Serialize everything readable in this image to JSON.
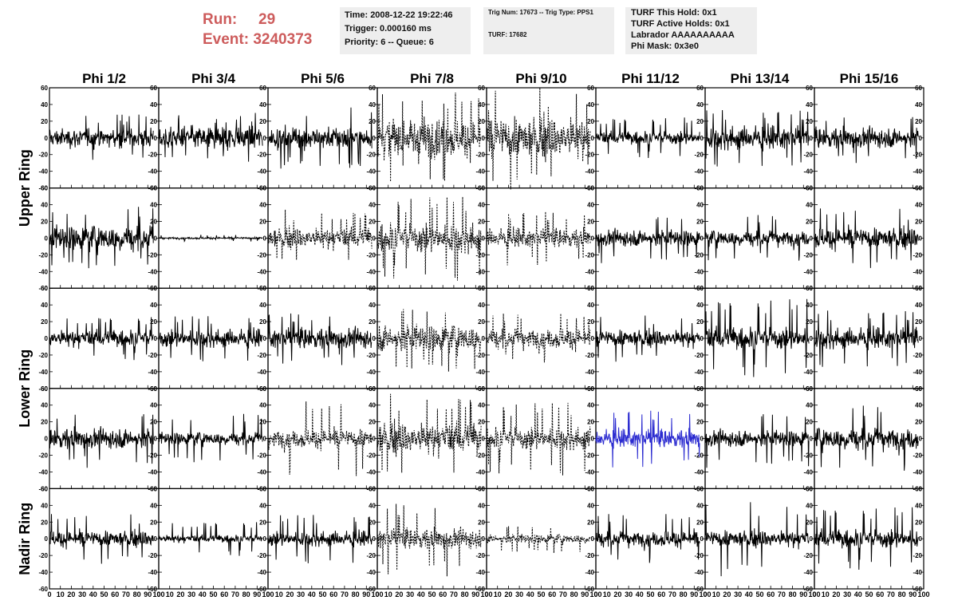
{
  "run_box": {
    "run_label": "Run:",
    "run_value": "29",
    "event_label": "Event:",
    "event_value": "3240373",
    "color": "#cd5c5c"
  },
  "time_box": {
    "time": "Time: 2008-12-22 19:22:46",
    "trigger": "Trigger: 0.000160 ms",
    "priority": "Priority: 6 -- Queue: 6"
  },
  "trig_box": {
    "trig": "Trig Num: 17673 -- Trig Type: PPS1",
    "turf": "TURF: 17682"
  },
  "turf_box": {
    "hold": "TURF This Hold: 0x1",
    "active": "TURF Active Holds: 0x1",
    "labrador": "Labrador AAAAAAAAAA",
    "phimask": "Phi Mask: 0x3e0"
  },
  "chart_data": {
    "type": "line",
    "columns": [
      "Phi 1/2",
      "Phi 3/4",
      "Phi 5/6",
      "Phi 7/8",
      "Phi 9/10",
      "Phi 11/12",
      "Phi 13/14",
      "Phi 15/16"
    ],
    "ring_labels": [
      {
        "label": "Upper Ring",
        "rows": [
          0,
          1
        ]
      },
      {
        "label": "Lower Ring",
        "rows": [
          2,
          3
        ]
      },
      {
        "label": "Nadir Ring",
        "rows": [
          4
        ]
      }
    ],
    "rows": 5,
    "xlim": [
      0,
      100
    ],
    "ylim": [
      -60,
      60
    ],
    "x_tick_labels": [
      "0",
      "10",
      "20",
      "30",
      "40",
      "50",
      "60",
      "70",
      "80",
      "90",
      "100"
    ],
    "y_tick_labels": [
      "-60",
      "-40",
      "-20",
      "0",
      "20",
      "40",
      "60"
    ],
    "samples_per_trace": 260,
    "trace_x_range": [
      0,
      95
    ],
    "styles": {
      "solid": "#000000",
      "dotted": "#000000",
      "highlight": "#2b2bd0"
    },
    "traces": [
      [
        "solid",
        28,
        20,
        "solid",
        30,
        24,
        "solid",
        38,
        24,
        "dotted",
        55,
        40,
        "dotted",
        62,
        45,
        "solid",
        26,
        14,
        "solid",
        35,
        25,
        "solid",
        30,
        22
      ],
      [
        "solid",
        38,
        28,
        "solid",
        4,
        2,
        "dotted",
        35,
        22,
        "dotted",
        52,
        32,
        "dotted",
        34,
        20,
        "solid",
        30,
        18,
        "solid",
        28,
        17,
        "solid",
        36,
        22
      ],
      [
        "solid",
        28,
        18,
        "solid",
        28,
        19,
        "solid",
        32,
        22,
        "dotted",
        42,
        30,
        "dotted",
        30,
        22,
        "solid",
        28,
        18,
        "solid",
        50,
        24,
        "solid",
        35,
        22
      ],
      [
        "solid",
        35,
        22,
        "solid",
        30,
        14,
        "dotted",
        45,
        20,
        "dotted",
        55,
        34,
        "dotted",
        45,
        24,
        "highlight",
        36,
        19,
        "solid",
        35,
        18,
        "solid",
        40,
        24
      ],
      [
        "solid",
        30,
        17,
        "solid",
        22,
        8,
        "solid",
        30,
        16,
        "dotted",
        45,
        22,
        "dotted",
        18,
        10,
        "solid",
        30,
        17,
        "solid",
        45,
        18,
        "solid",
        40,
        20
      ]
    ]
  }
}
